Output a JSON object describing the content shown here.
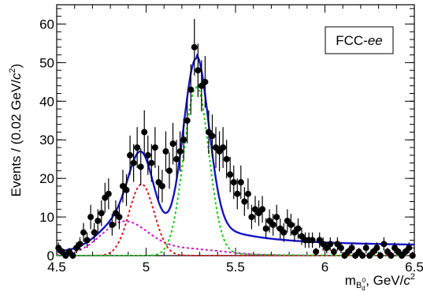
{
  "chart_data": {
    "type": "scatter",
    "badge": {
      "prefix": "FCC-",
      "suffix": "ee"
    },
    "ylabel": {
      "main": "Events / (0.02 GeV/",
      "c": "c",
      "exp": "2",
      "close": ")"
    },
    "xlabel": {
      "m": "m",
      "sub": "B",
      "subsub": "d",
      "sup": "0",
      "rest": ", GeV/",
      "c": "c",
      "exp": "2"
    },
    "xlim": [
      4.5,
      6.5
    ],
    "ylim": [
      0,
      65
    ],
    "x_ticks": [
      4.5,
      5,
      5.5,
      6,
      6.5
    ],
    "y_ticks": [
      0,
      10,
      20,
      30,
      40,
      50,
      60
    ],
    "x_tick_labels": [
      "4.5",
      "5",
      "5.5",
      "6",
      "6.5"
    ],
    "y_tick_labels": [
      "0",
      "10",
      "20",
      "30",
      "40",
      "50",
      "60"
    ],
    "colors": {
      "total": "#1414c8",
      "signal": "#14d214",
      "peak2": "#e61414",
      "background": "#d214d2",
      "points": "#000000"
    },
    "data_points": [
      {
        "x": 4.51,
        "y": 2
      },
      {
        "x": 4.53,
        "y": 1
      },
      {
        "x": 4.55,
        "y": 0
      },
      {
        "x": 4.57,
        "y": 1
      },
      {
        "x": 4.59,
        "y": 0
      },
      {
        "x": 4.61,
        "y": 2
      },
      {
        "x": 4.63,
        "y": 3
      },
      {
        "x": 4.65,
        "y": 6
      },
      {
        "x": 4.67,
        "y": 4
      },
      {
        "x": 4.69,
        "y": 10
      },
      {
        "x": 4.71,
        "y": 6
      },
      {
        "x": 4.73,
        "y": 9
      },
      {
        "x": 4.75,
        "y": 11
      },
      {
        "x": 4.77,
        "y": 15
      },
      {
        "x": 4.79,
        "y": 16
      },
      {
        "x": 4.81,
        "y": 8
      },
      {
        "x": 4.83,
        "y": 11
      },
      {
        "x": 4.85,
        "y": 10
      },
      {
        "x": 4.87,
        "y": 18
      },
      {
        "x": 4.89,
        "y": 17
      },
      {
        "x": 4.91,
        "y": 26
      },
      {
        "x": 4.93,
        "y": 24
      },
      {
        "x": 4.95,
        "y": 28
      },
      {
        "x": 4.97,
        "y": 23
      },
      {
        "x": 4.99,
        "y": 32
      },
      {
        "x": 5.01,
        "y": 26
      },
      {
        "x": 5.03,
        "y": 24
      },
      {
        "x": 5.05,
        "y": 28
      },
      {
        "x": 5.07,
        "y": 19
      },
      {
        "x": 5.09,
        "y": 18
      },
      {
        "x": 5.11,
        "y": 27
      },
      {
        "x": 5.13,
        "y": 22
      },
      {
        "x": 5.15,
        "y": 29
      },
      {
        "x": 5.17,
        "y": 25
      },
      {
        "x": 5.19,
        "y": 27
      },
      {
        "x": 5.21,
        "y": 30
      },
      {
        "x": 5.23,
        "y": 35
      },
      {
        "x": 5.25,
        "y": 43
      },
      {
        "x": 5.27,
        "y": 54
      },
      {
        "x": 5.29,
        "y": 48
      },
      {
        "x": 5.31,
        "y": 44
      },
      {
        "x": 5.33,
        "y": 45
      },
      {
        "x": 5.35,
        "y": 32
      },
      {
        "x": 5.37,
        "y": 31
      },
      {
        "x": 5.39,
        "y": 28
      },
      {
        "x": 5.41,
        "y": 27
      },
      {
        "x": 5.43,
        "y": 28
      },
      {
        "x": 5.45,
        "y": 25
      },
      {
        "x": 5.47,
        "y": 21
      },
      {
        "x": 5.49,
        "y": 19
      },
      {
        "x": 5.51,
        "y": 16
      },
      {
        "x": 5.53,
        "y": 19
      },
      {
        "x": 5.55,
        "y": 14
      },
      {
        "x": 5.57,
        "y": 16
      },
      {
        "x": 5.59,
        "y": 10
      },
      {
        "x": 5.61,
        "y": 12
      },
      {
        "x": 5.63,
        "y": 11
      },
      {
        "x": 5.65,
        "y": 12
      },
      {
        "x": 5.67,
        "y": 7
      },
      {
        "x": 5.69,
        "y": 9
      },
      {
        "x": 5.71,
        "y": 8
      },
      {
        "x": 5.73,
        "y": 10
      },
      {
        "x": 5.75,
        "y": 7
      },
      {
        "x": 5.77,
        "y": 6
      },
      {
        "x": 5.79,
        "y": 9
      },
      {
        "x": 5.81,
        "y": 8
      },
      {
        "x": 5.83,
        "y": 6
      },
      {
        "x": 5.85,
        "y": 7
      },
      {
        "x": 5.87,
        "y": 5
      },
      {
        "x": 5.89,
        "y": 4
      },
      {
        "x": 5.91,
        "y": 4
      },
      {
        "x": 5.93,
        "y": 4
      },
      {
        "x": 5.95,
        "y": 1
      },
      {
        "x": 5.97,
        "y": 4
      },
      {
        "x": 5.99,
        "y": 3
      },
      {
        "x": 6.01,
        "y": 2
      },
      {
        "x": 6.03,
        "y": 3
      },
      {
        "x": 6.05,
        "y": 1
      },
      {
        "x": 6.07,
        "y": 3
      },
      {
        "x": 6.09,
        "y": 2
      },
      {
        "x": 6.11,
        "y": 0
      },
      {
        "x": 6.13,
        "y": 1
      },
      {
        "x": 6.15,
        "y": 2
      },
      {
        "x": 6.17,
        "y": 0
      },
      {
        "x": 6.19,
        "y": 1
      },
      {
        "x": 6.21,
        "y": 0
      },
      {
        "x": 6.23,
        "y": 2
      },
      {
        "x": 6.25,
        "y": 0
      },
      {
        "x": 6.27,
        "y": 1
      },
      {
        "x": 6.29,
        "y": 2
      },
      {
        "x": 6.31,
        "y": 0
      },
      {
        "x": 6.33,
        "y": 3
      },
      {
        "x": 6.35,
        "y": 1
      },
      {
        "x": 6.37,
        "y": 0
      },
      {
        "x": 6.39,
        "y": 2
      },
      {
        "x": 6.41,
        "y": 1
      },
      {
        "x": 6.43,
        "y": 0
      },
      {
        "x": 6.45,
        "y": 1
      },
      {
        "x": 6.47,
        "y": 2
      },
      {
        "x": 6.49,
        "y": 0
      }
    ],
    "model": {
      "signal": {
        "mean": 5.28,
        "sigma": 0.07,
        "amplitude": 43.5
      },
      "peak2": {
        "mean": 4.975,
        "sigma": 0.07,
        "amplitude": 18.5
      },
      "background": {
        "mean": 4.875,
        "sigma": 0.13,
        "amplitude": 8.3,
        "tail_mean": 5.2,
        "tail_sigma": 0.22,
        "tail_amplitude": 1.8
      },
      "total_tail": {
        "start": 5.28,
        "slope": 2.2,
        "amplitude": 3.6,
        "floor": 1.6
      }
    }
  }
}
